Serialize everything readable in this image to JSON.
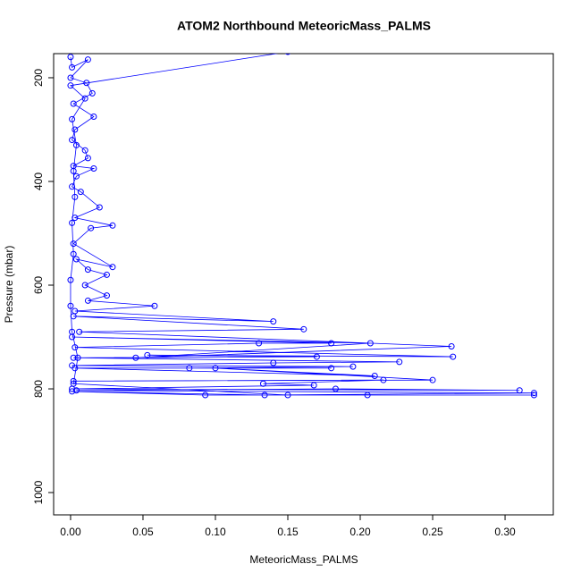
{
  "chart_data": {
    "type": "scatter",
    "lines": true,
    "title": "ATOM2 Northbound MeteoricMass_PALMS",
    "x_label": "MeteoricMass_PALMS",
    "y_label": "Pressure (mbar)",
    "xlim": [
      -0.0117,
      0.3333
    ],
    "ylim": [
      1043,
      153.5
    ],
    "y_reversed": true,
    "xticks": [
      {
        "value": 0,
        "label": "0.00"
      },
      {
        "value": 0.05,
        "label": "0.05"
      },
      {
        "value": 0.1,
        "label": "0.10"
      },
      {
        "value": 0.15,
        "label": "0.15"
      },
      {
        "value": 0.2,
        "label": "0.20"
      },
      {
        "value": 0.25,
        "label": "0.25"
      },
      {
        "value": 0.3,
        "label": "0.30"
      }
    ],
    "yticks": [
      200,
      400,
      600,
      800,
      1000
    ],
    "series": [
      {
        "color": "#0000ff",
        "x": [
          0.0,
          0.001,
          0.012,
          0.0,
          0.011,
          0.015,
          0.002,
          0.016,
          0.003,
          0.001,
          0.01,
          0.012,
          0.002,
          0.016,
          0.004,
          0.001,
          0.007,
          0.02,
          0.003,
          0.029,
          0.014,
          0.002,
          0.029,
          0.004,
          0.012,
          0.025,
          0.01,
          0.025,
          0.012,
          0.058,
          0.003,
          0.14,
          0.002,
          0.161,
          0.006,
          0.263,
          0.045,
          0.207,
          0.001,
          0.18,
          0.13,
          0.003,
          0.264,
          0.053,
          0.17,
          0.002,
          0.227,
          0.14,
          0.001,
          0.195,
          0.082,
          0.18,
          0.003,
          0.21,
          0.1,
          0.25,
          0.002,
          0.216,
          0.133,
          0.168,
          0.001,
          0.31,
          0.183,
          0.004,
          0.32,
          0.134,
          0.001,
          0.093,
          0.205,
          0.32,
          0.15,
          0.002,
          0.005,
          0.001,
          0.0,
          0.0,
          0.002,
          0.001,
          0.003,
          0.002,
          0.004,
          0.001,
          0.01,
          0.0,
          0.15
        ],
        "values": [
          160,
          180,
          165,
          200,
          210,
          230,
          250,
          275,
          300,
          320,
          340,
          355,
          370,
          375,
          390,
          410,
          420,
          450,
          470,
          485,
          490,
          520,
          565,
          550,
          570,
          580,
          600,
          620,
          630,
          640,
          650,
          670,
          660,
          685,
          690,
          718,
          740,
          712,
          700,
          712,
          712,
          720,
          738,
          735,
          738,
          740,
          748,
          750,
          755,
          757,
          760,
          760,
          760,
          775,
          760,
          783,
          785,
          783,
          790,
          793,
          800,
          803,
          800,
          803,
          808,
          812,
          805,
          812,
          812,
          812,
          812,
          790,
          740,
          690,
          640,
          590,
          540,
          480,
          430,
          380,
          330,
          280,
          240,
          215,
          150
        ]
      }
    ]
  }
}
